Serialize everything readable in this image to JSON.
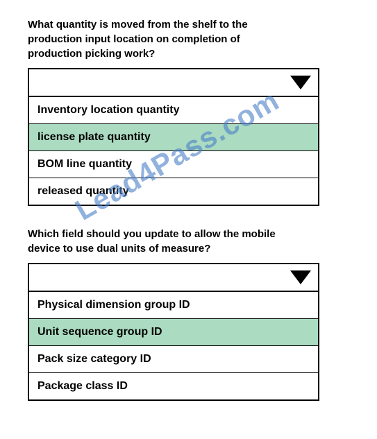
{
  "question1": {
    "text": "What quantity is moved from the shelf to the production input location on completion of production picking work?",
    "options": [
      {
        "label": "Inventory location quantity",
        "highlighted": false
      },
      {
        "label": "license plate quantity",
        "highlighted": true
      },
      {
        "label": "BOM line quantity",
        "highlighted": false
      },
      {
        "label": "released quantity",
        "highlighted": false
      }
    ]
  },
  "question2": {
    "text": "Which field should you update to allow the mobile device to use dual units of measure?",
    "options": [
      {
        "label": "Physical dimension group ID",
        "highlighted": false
      },
      {
        "label": "Unit sequence group ID",
        "highlighted": true
      },
      {
        "label": "Pack size category ID",
        "highlighted": false
      },
      {
        "label": "Package class ID",
        "highlighted": false
      }
    ]
  },
  "watermark": "Lead4Pass.com",
  "colors": {
    "highlight": "#abdbc0",
    "border": "#000000",
    "text": "#000000",
    "watermark": "#4a7fc9",
    "background": "#ffffff"
  },
  "typography": {
    "question_fontsize": 15,
    "option_fontsize": 16,
    "watermark_fontsize": 42,
    "font_family": "Arial"
  }
}
